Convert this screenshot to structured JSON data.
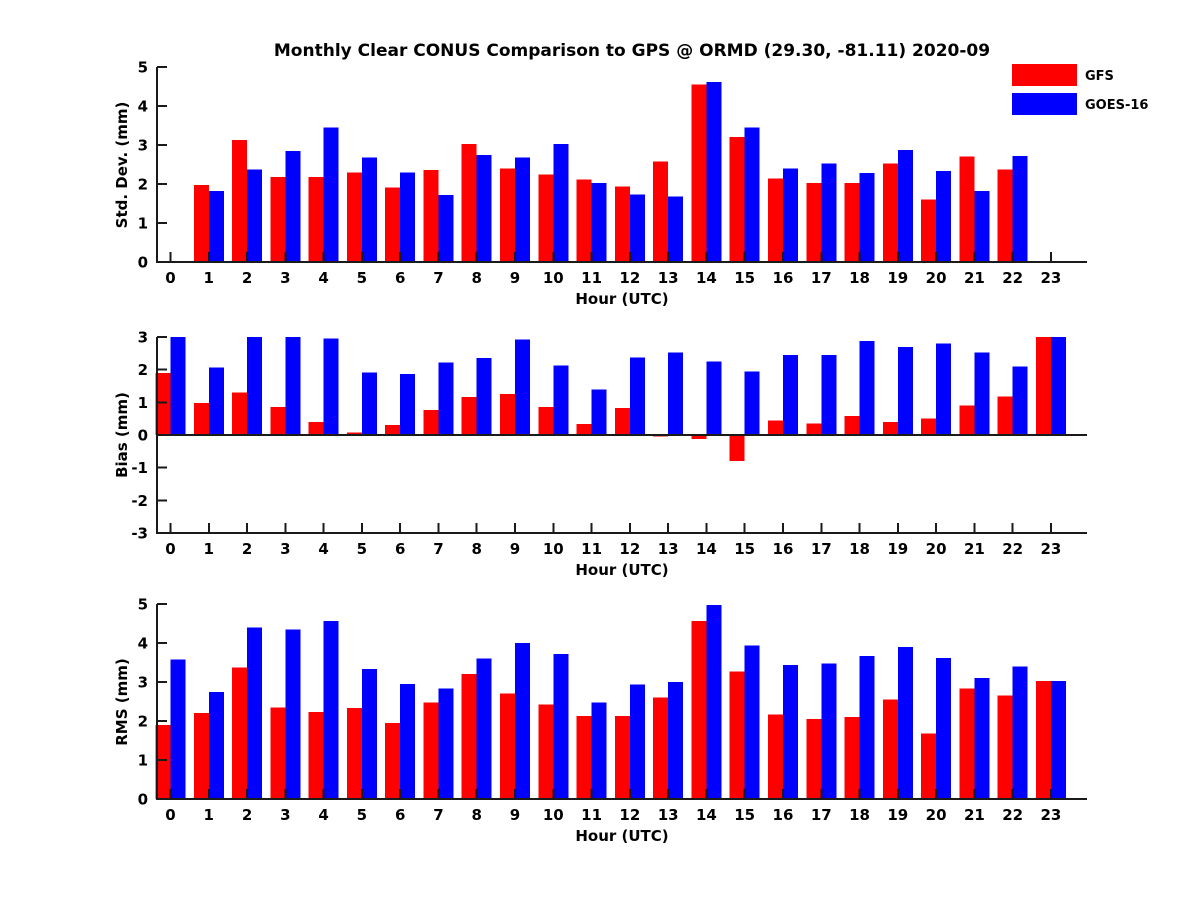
{
  "title": "Monthly Clear CONUS Comparison to GPS @ ORMD (29.30, -81.11) 2020-09",
  "legend": {
    "position": "top-right",
    "items": [
      {
        "label": "GFS",
        "color": "#ff0000"
      },
      {
        "label": "GOES-16",
        "color": "#0000ff"
      }
    ]
  },
  "colors": {
    "gfs": "#ff0000",
    "goes16": "#0000ff",
    "axis": "#1a1a1a",
    "text": "#000000",
    "background": "#ffffff"
  },
  "chart_data": [
    {
      "type": "bar",
      "name": "std-dev-panel",
      "xlabel": "Hour (UTC)",
      "ylabel": "Std. Dev. (mm)",
      "ylim": [
        0,
        5
      ],
      "yticks": [
        0,
        1,
        2,
        3,
        4,
        5
      ],
      "grid": false,
      "categories": [
        "0",
        "1",
        "2",
        "3",
        "4",
        "5",
        "6",
        "7",
        "8",
        "9",
        "10",
        "11",
        "12",
        "13",
        "14",
        "15",
        "16",
        "17",
        "18",
        "19",
        "20",
        "21",
        "22",
        "23"
      ],
      "series": [
        {
          "name": "GFS",
          "color": "#ff0000",
          "values": [
            null,
            1.97,
            3.13,
            2.18,
            2.18,
            2.3,
            1.91,
            2.36,
            3.02,
            2.4,
            2.25,
            2.12,
            1.93,
            2.58,
            4.55,
            3.2,
            2.14,
            2.02,
            2.02,
            2.53,
            1.6,
            2.71,
            2.37,
            null
          ]
        },
        {
          "name": "GOES-16",
          "color": "#0000ff",
          "values": [
            null,
            1.82,
            2.37,
            2.85,
            3.45,
            2.68,
            2.3,
            1.72,
            2.75,
            2.68,
            3.02,
            2.03,
            1.73,
            1.68,
            4.62,
            3.45,
            2.4,
            2.53,
            2.28,
            2.87,
            2.33,
            1.82,
            2.72,
            null
          ]
        }
      ]
    },
    {
      "type": "bar",
      "name": "bias-panel",
      "xlabel": "Hour (UTC)",
      "ylabel": "Bias (mm)",
      "ylim": [
        -3,
        3
      ],
      "yticks": [
        -3,
        -2,
        -1,
        0,
        1,
        2,
        3
      ],
      "zero_line": true,
      "grid": false,
      "categories": [
        "0",
        "1",
        "2",
        "3",
        "4",
        "5",
        "6",
        "7",
        "8",
        "9",
        "10",
        "11",
        "12",
        "13",
        "14",
        "15",
        "16",
        "17",
        "18",
        "19",
        "20",
        "21",
        "22",
        "23"
      ],
      "series": [
        {
          "name": "GFS",
          "color": "#ff0000",
          "values": [
            1.9,
            0.98,
            1.3,
            0.86,
            0.4,
            0.08,
            0.3,
            0.77,
            1.17,
            1.25,
            0.86,
            0.33,
            0.83,
            -0.05,
            -0.13,
            -0.8,
            0.45,
            0.35,
            0.58,
            0.4,
            0.5,
            0.9,
            1.18,
            3.0
          ]
        },
        {
          "name": "GOES-16",
          "color": "#0000ff",
          "values": [
            3.0,
            2.07,
            3.0,
            3.0,
            2.95,
            1.92,
            1.87,
            2.22,
            2.35,
            2.92,
            2.13,
            1.4,
            2.37,
            2.53,
            2.25,
            1.95,
            2.45,
            2.45,
            2.88,
            2.7,
            2.8,
            2.52,
            2.1,
            3.0
          ]
        }
      ]
    },
    {
      "type": "bar",
      "name": "rms-panel",
      "xlabel": "Hour (UTC)",
      "ylabel": "RMS (mm)",
      "ylim": [
        0,
        5
      ],
      "yticks": [
        0,
        1,
        2,
        3,
        4,
        5
      ],
      "grid": false,
      "categories": [
        "0",
        "1",
        "2",
        "3",
        "4",
        "5",
        "6",
        "7",
        "8",
        "9",
        "10",
        "11",
        "12",
        "13",
        "14",
        "15",
        "16",
        "17",
        "18",
        "19",
        "20",
        "21",
        "22",
        "23"
      ],
      "series": [
        {
          "name": "GFS",
          "color": "#ff0000",
          "values": [
            1.9,
            2.2,
            3.37,
            2.35,
            2.23,
            2.33,
            1.95,
            2.47,
            3.2,
            2.7,
            2.42,
            2.13,
            2.13,
            2.6,
            4.57,
            3.27,
            2.17,
            2.05,
            2.1,
            2.55,
            1.68,
            2.83,
            2.65,
            3.02
          ]
        },
        {
          "name": "GOES-16",
          "color": "#0000ff",
          "values": [
            3.58,
            2.75,
            4.4,
            4.35,
            4.57,
            3.33,
            2.95,
            2.83,
            3.6,
            4.0,
            3.72,
            2.48,
            2.93,
            3.0,
            4.98,
            3.93,
            3.43,
            3.48,
            3.67,
            3.9,
            3.62,
            3.1,
            3.4,
            3.02
          ]
        }
      ]
    }
  ]
}
